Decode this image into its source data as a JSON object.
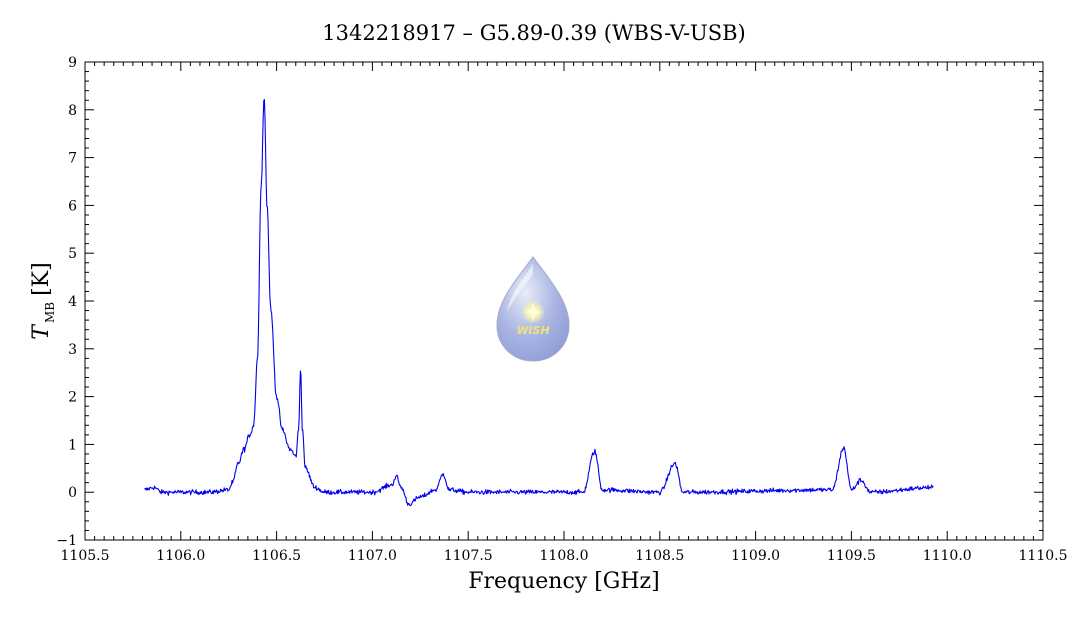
{
  "chart_data": {
    "type": "line",
    "title": "1342218917 – G5.89-0.39 (WBS-V-USB)",
    "xlabel": "Frequency [GHz]",
    "ylabel": "T",
    "ylabel_subscript": "MB",
    "ylabel_unit": "[K]",
    "xlim": [
      1105.5,
      1110.5
    ],
    "ylim": [
      -1,
      9
    ],
    "x_ticks": [
      1105.5,
      1106.0,
      1106.5,
      1107.0,
      1107.5,
      1108.0,
      1108.5,
      1109.0,
      1109.5,
      1110.0,
      1110.5
    ],
    "x_tick_labels": [
      "1105.5",
      "1106.0",
      "1106.5",
      "1107.0",
      "1107.5",
      "1108.0",
      "1108.5",
      "1109.0",
      "1109.5",
      "1110.0",
      "1110.5"
    ],
    "y_ticks": [
      -1,
      0,
      1,
      2,
      3,
      4,
      5,
      6,
      7,
      8,
      9
    ],
    "y_tick_labels": [
      "−1",
      "0",
      "1",
      "2",
      "3",
      "4",
      "5",
      "6",
      "7",
      "8",
      "9"
    ],
    "grid": false,
    "line_color": "#0000ee",
    "series": [
      {
        "x_range": [
          1105.81,
          1109.93
        ],
        "baseline": 0.0,
        "noise_rms": 0.05,
        "points": [
          [
            1105.81,
            0.05
          ],
          [
            1105.86,
            0.1
          ],
          [
            1105.9,
            0.0
          ],
          [
            1106.0,
            0.0
          ],
          [
            1106.15,
            0.0
          ],
          [
            1106.25,
            0.05
          ],
          [
            1106.27,
            0.2
          ],
          [
            1106.3,
            0.6
          ],
          [
            1106.33,
            0.9
          ],
          [
            1106.36,
            1.2
          ],
          [
            1106.38,
            1.4
          ],
          [
            1106.4,
            2.8
          ],
          [
            1106.42,
            6.5
          ],
          [
            1106.435,
            8.3
          ],
          [
            1106.45,
            6.0
          ],
          [
            1106.47,
            3.8
          ],
          [
            1106.5,
            2.0
          ],
          [
            1106.53,
            1.3
          ],
          [
            1106.57,
            0.9
          ],
          [
            1106.6,
            0.75
          ],
          [
            1106.615,
            1.3
          ],
          [
            1106.625,
            2.6
          ],
          [
            1106.635,
            1.3
          ],
          [
            1106.65,
            0.5
          ],
          [
            1106.7,
            0.1
          ],
          [
            1106.75,
            0.0
          ],
          [
            1107.0,
            0.0
          ],
          [
            1107.1,
            0.15
          ],
          [
            1107.125,
            0.33
          ],
          [
            1107.15,
            0.1
          ],
          [
            1107.19,
            -0.25
          ],
          [
            1107.25,
            -0.1
          ],
          [
            1107.33,
            0.05
          ],
          [
            1107.37,
            0.38
          ],
          [
            1107.4,
            0.05
          ],
          [
            1107.5,
            0.0
          ],
          [
            1108.1,
            0.0
          ],
          [
            1108.16,
            0.85
          ],
          [
            1108.2,
            0.05
          ],
          [
            1108.5,
            0.0
          ],
          [
            1108.58,
            0.6
          ],
          [
            1108.62,
            0.0
          ],
          [
            1109.4,
            0.05
          ],
          [
            1109.46,
            0.92
          ],
          [
            1109.5,
            0.05
          ],
          [
            1109.55,
            0.25
          ],
          [
            1109.6,
            0.0
          ],
          [
            1109.93,
            0.1
          ]
        ]
      }
    ]
  },
  "logo": {
    "name": "wish-drop-logo",
    "text": "WISH"
  }
}
